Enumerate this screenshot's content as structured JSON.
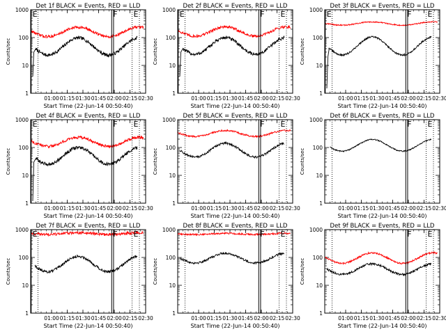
{
  "chart_data": [
    {
      "id": "det1f",
      "type": "line",
      "title": "Det 1f BLACK = Events, RED = LLD",
      "xlabel": "Start Time (22-Jun-14 00:50:40)",
      "ylabel": "Counts/sec",
      "yscale": "log",
      "ylim": [
        1,
        1000
      ],
      "yticks": [
        {
          "v": 1,
          "label": "1"
        },
        {
          "v": 10,
          "label": "10"
        },
        {
          "v": 100,
          "label": "100"
        },
        {
          "v": 1000,
          "label": "1000"
        }
      ],
      "xlim_min": [
        -10,
        100
      ],
      "xticks": [
        {
          "v": 10,
          "label": "01:00"
        },
        {
          "v": 25,
          "label": "01:15"
        },
        {
          "v": 40,
          "label": "01:30"
        },
        {
          "v": 55,
          "label": "01:45"
        },
        {
          "v": 70,
          "label": "02:00"
        },
        {
          "v": 85,
          "label": "02:15"
        },
        {
          "v": 100,
          "label": "02:30"
        }
      ],
      "markers": [
        {
          "label": "E",
          "x": -9.5,
          "style": "solid"
        },
        {
          "label": "",
          "x": -3,
          "style": "dotted"
        },
        {
          "label": "F",
          "x": 67.5,
          "style": "solid"
        },
        {
          "label": "",
          "x": 69.3,
          "style": "solid"
        },
        {
          "label": "E",
          "x": 87,
          "style": "dotted"
        },
        {
          "label": "",
          "x": 94,
          "style": "dotted"
        }
      ],
      "series": [
        {
          "name": "BLACK = Events",
          "color": "#000000",
          "start": -8,
          "end": 92,
          "base": 48,
          "amp": 0.62,
          "phase": -1.2,
          "noise": 0.06,
          "ramp": [
            [
              -8,
              4
            ],
            [
              -7,
              30
            ],
            [
              -5,
              40
            ]
          ]
        },
        {
          "name": "RED = LLD",
          "color": "#ff0000",
          "start": -10,
          "end": 98,
          "base": 160,
          "amp": 0.34,
          "phase": -1.2,
          "noise": 0.05
        }
      ]
    },
    {
      "id": "det2f",
      "type": "line",
      "title": "Det 2f BLACK = Events, RED = LLD",
      "xlabel": "Start Time (22-Jun-14 00:50:40)",
      "ylabel": "Counts/sec",
      "yscale": "log",
      "ylim": [
        1,
        1000
      ],
      "yticks": [
        {
          "v": 1,
          "label": "1"
        },
        {
          "v": 10,
          "label": "10"
        },
        {
          "v": 100,
          "label": "100"
        },
        {
          "v": 1000,
          "label": "1000"
        }
      ],
      "xlim_min": [
        -10,
        100
      ],
      "xticks": [
        {
          "v": 10,
          "label": "01:00"
        },
        {
          "v": 25,
          "label": "01:15"
        },
        {
          "v": 40,
          "label": "01:30"
        },
        {
          "v": 55,
          "label": "01:45"
        },
        {
          "v": 70,
          "label": "02:00"
        },
        {
          "v": 85,
          "label": "02:15"
        },
        {
          "v": 100,
          "label": "02:30"
        }
      ],
      "markers": [
        {
          "label": "E",
          "x": -9.5,
          "style": "solid"
        },
        {
          "label": "",
          "x": -3,
          "style": "dotted"
        },
        {
          "label": "F",
          "x": 67.5,
          "style": "solid"
        },
        {
          "label": "",
          "x": 69.3,
          "style": "solid"
        },
        {
          "label": "E",
          "x": 87,
          "style": "dotted"
        },
        {
          "label": "",
          "x": 94,
          "style": "dotted"
        }
      ],
      "series": [
        {
          "name": "BLACK = Events",
          "color": "#000000",
          "start": -8,
          "end": 92,
          "base": 50,
          "amp": 0.6,
          "phase": -1.2,
          "noise": 0.06,
          "ramp": [
            [
              -8,
              4
            ],
            [
              -7,
              30
            ],
            [
              -5,
              40
            ]
          ]
        },
        {
          "name": "RED = LLD",
          "color": "#ff0000",
          "start": -10,
          "end": 98,
          "base": 165,
          "amp": 0.34,
          "phase": -1.2,
          "noise": 0.05
        }
      ]
    },
    {
      "id": "det3f",
      "type": "line",
      "title": "Det 3f BLACK = Events, RED = LLD",
      "xlabel": "Start Time (22-Jun-14 00:50:40)",
      "ylabel": "Counts/sec",
      "yscale": "log",
      "ylim": [
        1,
        1000
      ],
      "yticks": [
        {
          "v": 1,
          "label": "1"
        },
        {
          "v": 10,
          "label": "10"
        },
        {
          "v": 100,
          "label": "100"
        },
        {
          "v": 1000,
          "label": "1000"
        }
      ],
      "xlim_min": [
        -10,
        100
      ],
      "xticks": [
        {
          "v": 10,
          "label": "01:00"
        },
        {
          "v": 25,
          "label": "01:15"
        },
        {
          "v": 40,
          "label": "01:30"
        },
        {
          "v": 55,
          "label": "01:45"
        },
        {
          "v": 70,
          "label": "02:00"
        },
        {
          "v": 85,
          "label": "02:15"
        },
        {
          "v": 100,
          "label": "02:30"
        }
      ],
      "markers": [
        {
          "label": "E",
          "x": -9.5,
          "style": "solid"
        },
        {
          "label": "",
          "x": -3,
          "style": "dotted"
        },
        {
          "label": "F",
          "x": 67.5,
          "style": "solid"
        },
        {
          "label": "",
          "x": 69.3,
          "style": "solid"
        },
        {
          "label": "E",
          "x": 87,
          "style": "dotted"
        },
        {
          "label": "",
          "x": 94,
          "style": "dotted"
        }
      ],
      "series": [
        {
          "name": "BLACK = Events",
          "color": "#000000",
          "start": -8,
          "end": 92,
          "base": 50,
          "amp": 0.65,
          "phase": -1.2,
          "noise": 0.03,
          "ramp": [
            [
              -8,
              1.5
            ],
            [
              -7,
              20
            ],
            [
              -6,
              35
            ]
          ]
        },
        {
          "name": "RED = LLD",
          "color": "#ff0000",
          "start": -10,
          "end": 98,
          "base": 320,
          "amp": 0.12,
          "phase": -1.2,
          "noise": 0.02
        }
      ]
    },
    {
      "id": "det4f",
      "type": "line",
      "title": "Det 4f BLACK = Events, RED = LLD",
      "xlabel": "Start Time (22-Jun-14 00:50:40)",
      "ylabel": "Counts/sec",
      "yscale": "log",
      "ylim": [
        1,
        1000
      ],
      "yticks": [
        {
          "v": 1,
          "label": "1"
        },
        {
          "v": 10,
          "label": "10"
        },
        {
          "v": 100,
          "label": "100"
        },
        {
          "v": 1000,
          "label": "1000"
        }
      ],
      "xlim_min": [
        -10,
        100
      ],
      "xticks": [
        {
          "v": 10,
          "label": "01:00"
        },
        {
          "v": 25,
          "label": "01:15"
        },
        {
          "v": 40,
          "label": "01:30"
        },
        {
          "v": 55,
          "label": "01:45"
        },
        {
          "v": 70,
          "label": "02:00"
        },
        {
          "v": 85,
          "label": "02:15"
        },
        {
          "v": 100,
          "label": "02:30"
        }
      ],
      "markers": [
        {
          "label": "E",
          "x": -9.5,
          "style": "solid"
        },
        {
          "label": "",
          "x": -3,
          "style": "dotted"
        },
        {
          "label": "F",
          "x": 67.5,
          "style": "solid"
        },
        {
          "label": "",
          "x": 69.3,
          "style": "solid"
        },
        {
          "label": "E",
          "x": 87,
          "style": "dotted"
        },
        {
          "label": "",
          "x": 94,
          "style": "dotted"
        }
      ],
      "series": [
        {
          "name": "BLACK = Events",
          "color": "#000000",
          "start": -8,
          "end": 92,
          "base": 50,
          "amp": 0.6,
          "phase": -1.2,
          "noise": 0.06,
          "ramp": [
            [
              -8,
              1.2
            ],
            [
              -7,
              30
            ],
            [
              -5,
              40
            ]
          ]
        },
        {
          "name": "RED = LLD",
          "color": "#ff0000",
          "start": -10,
          "end": 98,
          "base": 160,
          "amp": 0.32,
          "phase": -1.2,
          "noise": 0.05
        }
      ]
    },
    {
      "id": "det5f",
      "type": "line",
      "title": "Det 5f BLACK = Events, RED = LLD",
      "xlabel": "Start Time (22-Jun-14 00:50:40)",
      "ylabel": "Counts/sec",
      "yscale": "log",
      "ylim": [
        1,
        1000
      ],
      "yticks": [
        {
          "v": 1,
          "label": "1"
        },
        {
          "v": 10,
          "label": "10"
        },
        {
          "v": 100,
          "label": "100"
        },
        {
          "v": 1000,
          "label": "1000"
        }
      ],
      "xlim_min": [
        -10,
        100
      ],
      "xticks": [
        {
          "v": 10,
          "label": "01:00"
        },
        {
          "v": 25,
          "label": "01:15"
        },
        {
          "v": 40,
          "label": "01:30"
        },
        {
          "v": 55,
          "label": "01:45"
        },
        {
          "v": 70,
          "label": "02:00"
        },
        {
          "v": 85,
          "label": "02:15"
        },
        {
          "v": 100,
          "label": "02:30"
        }
      ],
      "markers": [
        {
          "label": "",
          "x": -3,
          "style": "dotted"
        },
        {
          "label": "F",
          "x": 67.5,
          "style": "solid"
        },
        {
          "label": "",
          "x": 69.3,
          "style": "solid"
        },
        {
          "label": "E",
          "x": 87,
          "style": "dotted"
        },
        {
          "label": "",
          "x": 94,
          "style": "dotted"
        }
      ],
      "series": [
        {
          "name": "BLACK = Events",
          "color": "#000000",
          "start": -8,
          "end": 92,
          "base": 80,
          "amp": 0.5,
          "phase": -1.2,
          "noise": 0.04
        },
        {
          "name": "RED = LLD",
          "color": "#ff0000",
          "start": -10,
          "end": 98,
          "base": 320,
          "amp": 0.22,
          "phase": -1.2,
          "noise": 0.03
        }
      ]
    },
    {
      "id": "det6f",
      "type": "line",
      "title": "Det 6f BLACK = Events, RED = LLD",
      "xlabel": "Start Time (22-Jun-14 00:50:40)",
      "ylabel": "Counts/sec",
      "yscale": "log",
      "ylim": [
        1,
        1000
      ],
      "yticks": [
        {
          "v": 1,
          "label": "1"
        },
        {
          "v": 10,
          "label": "10"
        },
        {
          "v": 100,
          "label": "100"
        },
        {
          "v": 1000,
          "label": "1000"
        }
      ],
      "xlim_min": [
        -10,
        100
      ],
      "xticks": [
        {
          "v": 10,
          "label": "01:00"
        },
        {
          "v": 25,
          "label": "01:15"
        },
        {
          "v": 40,
          "label": "01:30"
        },
        {
          "v": 55,
          "label": "01:45"
        },
        {
          "v": 70,
          "label": "02:00"
        },
        {
          "v": 85,
          "label": "02:15"
        },
        {
          "v": 100,
          "label": "02:30"
        }
      ],
      "markers": [
        {
          "label": "",
          "x": -3,
          "style": "dotted"
        },
        {
          "label": "F",
          "x": 67.5,
          "style": "solid"
        },
        {
          "label": "",
          "x": 69.3,
          "style": "solid"
        },
        {
          "label": "E",
          "x": 87,
          "style": "dotted"
        },
        {
          "label": "",
          "x": 94,
          "style": "dotted"
        }
      ],
      "series": [
        {
          "name": "BLACK = Events",
          "color": "#000000",
          "start": -5,
          "end": 92,
          "base": 120,
          "amp": 0.42,
          "phase": -1.2,
          "noise": 0.02
        }
      ]
    },
    {
      "id": "det7f",
      "type": "line",
      "title": "Det 7f BLACK = Events, RED = LLD",
      "xlabel": "Start Time (22-Jun-14 00:50:40)",
      "ylabel": "Counts/sec",
      "yscale": "log",
      "ylim": [
        1,
        1000
      ],
      "yticks": [
        {
          "v": 1,
          "label": "1"
        },
        {
          "v": 10,
          "label": "10"
        },
        {
          "v": 100,
          "label": "100"
        },
        {
          "v": 1000,
          "label": "1000"
        }
      ],
      "xlim_min": [
        -10,
        100
      ],
      "xticks": [
        {
          "v": 10,
          "label": "01:00"
        },
        {
          "v": 25,
          "label": "01:15"
        },
        {
          "v": 40,
          "label": "01:30"
        },
        {
          "v": 55,
          "label": "01:45"
        },
        {
          "v": 70,
          "label": "02:00"
        },
        {
          "v": 85,
          "label": "02:15"
        },
        {
          "v": 100,
          "label": "02:30"
        }
      ],
      "markers": [
        {
          "label": "E",
          "x": -9.5,
          "style": "solid"
        },
        {
          "label": "",
          "x": -3,
          "style": "dotted"
        },
        {
          "label": "F",
          "x": 67.5,
          "style": "solid"
        },
        {
          "label": "",
          "x": 69.3,
          "style": "solid"
        },
        {
          "label": "E",
          "x": 87,
          "style": "dotted"
        },
        {
          "label": "",
          "x": 94,
          "style": "dotted"
        }
      ],
      "series": [
        {
          "name": "BLACK = Events",
          "color": "#000000",
          "start": -6,
          "end": 92,
          "base": 58,
          "amp": 0.55,
          "phase": -1.2,
          "noise": 0.05
        },
        {
          "name": "RED = LLD",
          "color": "#ff0000",
          "start": -10,
          "end": 98,
          "base": 720,
          "amp": 0.06,
          "phase": -1.2,
          "noise": 0.05
        }
      ]
    },
    {
      "id": "det8f",
      "type": "line",
      "title": "Det 8f BLACK = Events, RED = LLD",
      "xlabel": "Start Time (22-Jun-14 00:50:40)",
      "ylabel": "Counts/sec",
      "yscale": "log",
      "ylim": [
        1,
        1000
      ],
      "yticks": [
        {
          "v": 1,
          "label": "1"
        },
        {
          "v": 10,
          "label": "10"
        },
        {
          "v": 100,
          "label": "100"
        },
        {
          "v": 1000,
          "label": "1000"
        }
      ],
      "xlim_min": [
        -10,
        100
      ],
      "xticks": [
        {
          "v": 10,
          "label": "01:00"
        },
        {
          "v": 25,
          "label": "01:15"
        },
        {
          "v": 40,
          "label": "01:30"
        },
        {
          "v": 55,
          "label": "01:45"
        },
        {
          "v": 70,
          "label": "02:00"
        },
        {
          "v": 85,
          "label": "02:15"
        },
        {
          "v": 100,
          "label": "02:30"
        }
      ],
      "markers": [
        {
          "label": "",
          "x": -3,
          "style": "dotted"
        },
        {
          "label": "F",
          "x": 67.5,
          "style": "solid"
        },
        {
          "label": "",
          "x": 69.3,
          "style": "solid"
        },
        {
          "label": "E",
          "x": 87,
          "style": "dotted"
        },
        {
          "label": "",
          "x": 94,
          "style": "dotted"
        }
      ],
      "series": [
        {
          "name": "BLACK = Events",
          "color": "#000000",
          "start": -8,
          "end": 92,
          "base": 95,
          "amp": 0.35,
          "phase": -1.2,
          "noise": 0.04
        },
        {
          "name": "RED = LLD",
          "color": "#ff0000",
          "start": -10,
          "end": 98,
          "base": 700,
          "amp": 0.04,
          "phase": -1.2,
          "noise": 0.03
        }
      ]
    },
    {
      "id": "det9f",
      "type": "line",
      "title": "Det 9f BLACK = Events, RED = LLD",
      "xlabel": "Start Time (22-Jun-14 00:50:40)",
      "ylabel": "Counts/sec",
      "yscale": "log",
      "ylim": [
        1,
        1000
      ],
      "yticks": [
        {
          "v": 1,
          "label": "1"
        },
        {
          "v": 10,
          "label": "10"
        },
        {
          "v": 100,
          "label": "100"
        },
        {
          "v": 1000,
          "label": "1000"
        }
      ],
      "xlim_min": [
        -10,
        100
      ],
      "xticks": [
        {
          "v": 10,
          "label": "01:00"
        },
        {
          "v": 25,
          "label": "01:15"
        },
        {
          "v": 40,
          "label": "01:30"
        },
        {
          "v": 55,
          "label": "01:45"
        },
        {
          "v": 70,
          "label": "02:00"
        },
        {
          "v": 85,
          "label": "02:15"
        },
        {
          "v": 100,
          "label": "02:30"
        }
      ],
      "markers": [
        {
          "label": "",
          "x": -3,
          "style": "dotted"
        },
        {
          "label": "F",
          "x": 67.5,
          "style": "solid"
        },
        {
          "label": "",
          "x": 69.3,
          "style": "solid"
        },
        {
          "label": "E",
          "x": 87,
          "style": "dotted"
        },
        {
          "label": "",
          "x": 94,
          "style": "dotted"
        }
      ],
      "series": [
        {
          "name": "BLACK = Events",
          "color": "#000000",
          "start": -8,
          "end": 92,
          "base": 38,
          "amp": 0.38,
          "phase": -1.2,
          "noise": 0.04
        },
        {
          "name": "RED = LLD",
          "color": "#ff0000",
          "start": -10,
          "end": 98,
          "base": 95,
          "amp": 0.38,
          "phase": -1.2,
          "noise": 0.03
        }
      ]
    }
  ]
}
